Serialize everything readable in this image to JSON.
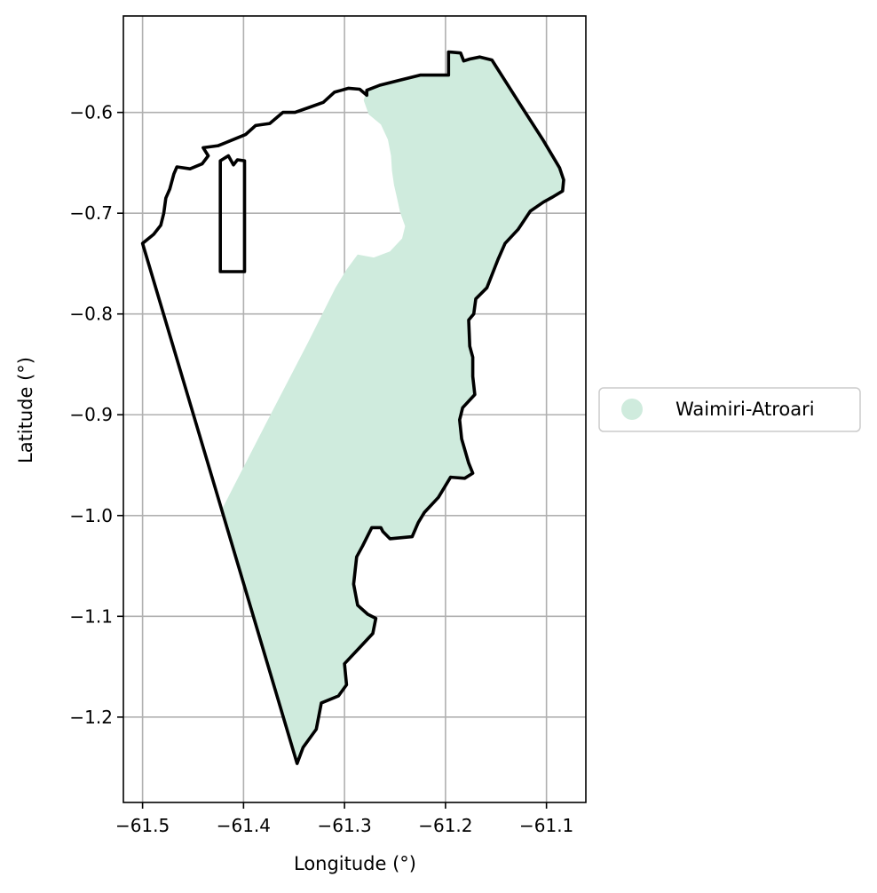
{
  "map": {
    "xlabel": "Longitude (°)",
    "ylabel": "Latitude (°)",
    "xlim": [
      -61.519,
      -61.061
    ],
    "ylim": [
      -1.2847,
      -0.5043
    ],
    "xticks": [
      -61.5,
      -61.4,
      -61.3,
      -61.2,
      -61.1
    ],
    "xtick_labels": [
      "−61.5",
      "−61.4",
      "−61.3",
      "−61.2",
      "−61.1"
    ],
    "yticks": [
      -0.6,
      -0.7,
      -0.8,
      -0.9,
      -1.0,
      -1.1,
      -1.2
    ],
    "ytick_labels": [
      "−0.6",
      "−0.7",
      "−0.8",
      "−0.9",
      "−1.0",
      "−1.1",
      "−1.2"
    ],
    "grid": true,
    "legend": {
      "placement": "right",
      "label": "Waimiri-Atroari",
      "color": "#cfebdd"
    },
    "fill_color": "#cfebdd",
    "outline_color": "#000000",
    "territory_fill": [
      [
        -61.278,
        -0.578
      ],
      [
        -61.265,
        -0.573
      ],
      [
        -61.245,
        -0.568
      ],
      [
        -61.225,
        -0.563
      ],
      [
        -61.197,
        -0.563
      ],
      [
        -61.197,
        -0.54
      ],
      [
        -61.185,
        -0.541
      ],
      [
        -61.182,
        -0.549
      ],
      [
        -61.176,
        -0.547
      ],
      [
        -61.166,
        -0.545
      ],
      [
        -61.154,
        -0.548
      ],
      [
        -61.128,
        -0.589
      ],
      [
        -61.103,
        -0.628
      ],
      [
        -61.087,
        -0.655
      ],
      [
        -61.083,
        -0.667
      ],
      [
        -61.084,
        -0.678
      ],
      [
        -61.094,
        -0.684
      ],
      [
        -61.103,
        -0.689
      ],
      [
        -61.116,
        -0.698
      ],
      [
        -61.128,
        -0.716
      ],
      [
        -61.141,
        -0.73
      ],
      [
        -61.148,
        -0.746
      ],
      [
        -61.159,
        -0.774
      ],
      [
        -61.17,
        -0.785
      ],
      [
        -61.172,
        -0.8
      ],
      [
        -61.177,
        -0.806
      ],
      [
        -61.176,
        -0.832
      ],
      [
        -61.173,
        -0.843
      ],
      [
        -61.173,
        -0.862
      ],
      [
        -61.171,
        -0.88
      ],
      [
        -61.183,
        -0.893
      ],
      [
        -61.186,
        -0.905
      ],
      [
        -61.184,
        -0.924
      ],
      [
        -61.177,
        -0.948
      ],
      [
        -61.173,
        -0.958
      ],
      [
        -61.181,
        -0.963
      ],
      [
        -61.195,
        -0.962
      ],
      [
        -61.207,
        -0.982
      ],
      [
        -61.221,
        -0.997
      ],
      [
        -61.227,
        -1.007
      ],
      [
        -61.233,
        -1.021
      ],
      [
        -61.255,
        -1.023
      ],
      [
        -61.262,
        -1.016
      ],
      [
        -61.264,
        -1.012
      ],
      [
        -61.273,
        -1.012
      ],
      [
        -61.282,
        -1.03
      ],
      [
        -61.288,
        -1.041
      ],
      [
        -61.291,
        -1.068
      ],
      [
        -61.287,
        -1.089
      ],
      [
        -61.277,
        -1.098
      ],
      [
        -61.269,
        -1.102
      ],
      [
        -61.272,
        -1.117
      ],
      [
        -61.285,
        -1.131
      ],
      [
        -61.3,
        -1.147
      ],
      [
        -61.298,
        -1.168
      ],
      [
        -61.306,
        -1.179
      ],
      [
        -61.323,
        -1.186
      ],
      [
        -61.328,
        -1.212
      ],
      [
        -61.341,
        -1.23
      ],
      [
        -61.347,
        -1.246
      ],
      [
        -61.422,
        -0.995
      ],
      [
        -61.378,
        -0.909
      ],
      [
        -61.337,
        -0.83
      ],
      [
        -61.309,
        -0.774
      ],
      [
        -61.298,
        -0.756
      ],
      [
        -61.287,
        -0.741
      ],
      [
        -61.271,
        -0.744
      ],
      [
        -61.255,
        -0.738
      ],
      [
        -61.243,
        -0.725
      ],
      [
        -61.24,
        -0.713
      ],
      [
        -61.245,
        -0.699
      ],
      [
        -61.248,
        -0.685
      ],
      [
        -61.251,
        -0.672
      ],
      [
        -61.253,
        -0.658
      ],
      [
        -61.254,
        -0.643
      ],
      [
        -61.257,
        -0.627
      ],
      [
        -61.264,
        -0.612
      ],
      [
        -61.276,
        -0.602
      ],
      [
        -61.281,
        -0.588
      ]
    ],
    "territory_outline": [
      [
        -61.5,
        -0.73
      ],
      [
        -61.489,
        -0.721
      ],
      [
        -61.482,
        -0.712
      ],
      [
        -61.479,
        -0.7
      ],
      [
        -61.477,
        -0.685
      ],
      [
        -61.473,
        -0.676
      ],
      [
        -61.469,
        -0.661
      ],
      [
        -61.466,
        -0.654
      ],
      [
        -61.453,
        -0.656
      ],
      [
        -61.441,
        -0.651
      ],
      [
        -61.435,
        -0.643
      ],
      [
        -61.44,
        -0.635
      ],
      [
        -61.425,
        -0.633
      ],
      [
        -61.408,
        -0.626
      ],
      [
        -61.398,
        -0.622
      ],
      [
        -61.388,
        -0.613
      ],
      [
        -61.374,
        -0.611
      ],
      [
        -61.361,
        -0.6
      ],
      [
        -61.349,
        -0.6
      ],
      [
        -61.335,
        -0.595
      ],
      [
        -61.321,
        -0.59
      ],
      [
        -61.31,
        -0.58
      ],
      [
        -61.296,
        -0.576
      ],
      [
        -61.285,
        -0.577
      ],
      [
        -61.278,
        -0.583
      ],
      [
        -61.278,
        -0.578
      ],
      [
        -61.265,
        -0.573
      ],
      [
        -61.245,
        -0.568
      ],
      [
        -61.225,
        -0.563
      ],
      [
        -61.197,
        -0.563
      ],
      [
        -61.197,
        -0.54
      ],
      [
        -61.185,
        -0.541
      ],
      [
        -61.182,
        -0.549
      ],
      [
        -61.176,
        -0.547
      ],
      [
        -61.166,
        -0.545
      ],
      [
        -61.154,
        -0.548
      ],
      [
        -61.128,
        -0.589
      ],
      [
        -61.103,
        -0.628
      ],
      [
        -61.087,
        -0.655
      ],
      [
        -61.083,
        -0.667
      ],
      [
        -61.084,
        -0.678
      ],
      [
        -61.094,
        -0.684
      ],
      [
        -61.103,
        -0.689
      ],
      [
        -61.116,
        -0.698
      ],
      [
        -61.128,
        -0.716
      ],
      [
        -61.141,
        -0.73
      ],
      [
        -61.148,
        -0.746
      ],
      [
        -61.159,
        -0.774
      ],
      [
        -61.17,
        -0.785
      ],
      [
        -61.172,
        -0.8
      ],
      [
        -61.177,
        -0.806
      ],
      [
        -61.176,
        -0.832
      ],
      [
        -61.173,
        -0.843
      ],
      [
        -61.173,
        -0.862
      ],
      [
        -61.171,
        -0.88
      ],
      [
        -61.183,
        -0.893
      ],
      [
        -61.186,
        -0.905
      ],
      [
        -61.184,
        -0.924
      ],
      [
        -61.177,
        -0.948
      ],
      [
        -61.173,
        -0.958
      ],
      [
        -61.181,
        -0.963
      ],
      [
        -61.195,
        -0.962
      ],
      [
        -61.207,
        -0.982
      ],
      [
        -61.221,
        -0.997
      ],
      [
        -61.227,
        -1.007
      ],
      [
        -61.233,
        -1.021
      ],
      [
        -61.255,
        -1.023
      ],
      [
        -61.262,
        -1.016
      ],
      [
        -61.264,
        -1.012
      ],
      [
        -61.273,
        -1.012
      ],
      [
        -61.282,
        -1.03
      ],
      [
        -61.288,
        -1.041
      ],
      [
        -61.291,
        -1.068
      ],
      [
        -61.287,
        -1.089
      ],
      [
        -61.277,
        -1.098
      ],
      [
        -61.269,
        -1.102
      ],
      [
        -61.272,
        -1.117
      ],
      [
        -61.285,
        -1.131
      ],
      [
        -61.3,
        -1.147
      ],
      [
        -61.298,
        -1.168
      ],
      [
        -61.306,
        -1.179
      ],
      [
        -61.323,
        -1.186
      ],
      [
        -61.328,
        -1.212
      ],
      [
        -61.341,
        -1.23
      ],
      [
        -61.347,
        -1.246
      ],
      [
        -61.5,
        -0.73
      ]
    ],
    "enclave_outline": [
      [
        -61.423,
        -0.648
      ],
      [
        -61.423,
        -0.758
      ],
      [
        -61.399,
        -0.758
      ],
      [
        -61.399,
        -0.648
      ],
      [
        -61.406,
        -0.647
      ],
      [
        -61.41,
        -0.652
      ],
      [
        -61.415,
        -0.643
      ],
      [
        -61.423,
        -0.648
      ]
    ]
  }
}
